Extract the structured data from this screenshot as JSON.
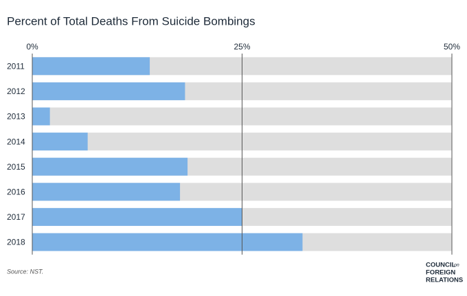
{
  "chart_data": {
    "type": "hbar",
    "title": "Percent of Total Deaths From Suicide Bombings",
    "categories": [
      "2011",
      "2012",
      "2013",
      "2014",
      "2015",
      "2016",
      "2017",
      "2018"
    ],
    "values": [
      14.0,
      18.2,
      2.1,
      6.6,
      18.5,
      17.6,
      25.0,
      32.2
    ],
    "color": "#7db2e6",
    "track_color": "#dedede",
    "xlim": [
      0,
      50
    ],
    "xticks": [
      {
        "value": 0,
        "label": "0%"
      },
      {
        "value": 25,
        "label": "25%"
      },
      {
        "value": 50,
        "label": "50%"
      }
    ],
    "grid": true,
    "source": "Source: NST.",
    "logo": [
      "COUNCIL",
      "on",
      "FOREIGN",
      "RELATIONS"
    ]
  }
}
